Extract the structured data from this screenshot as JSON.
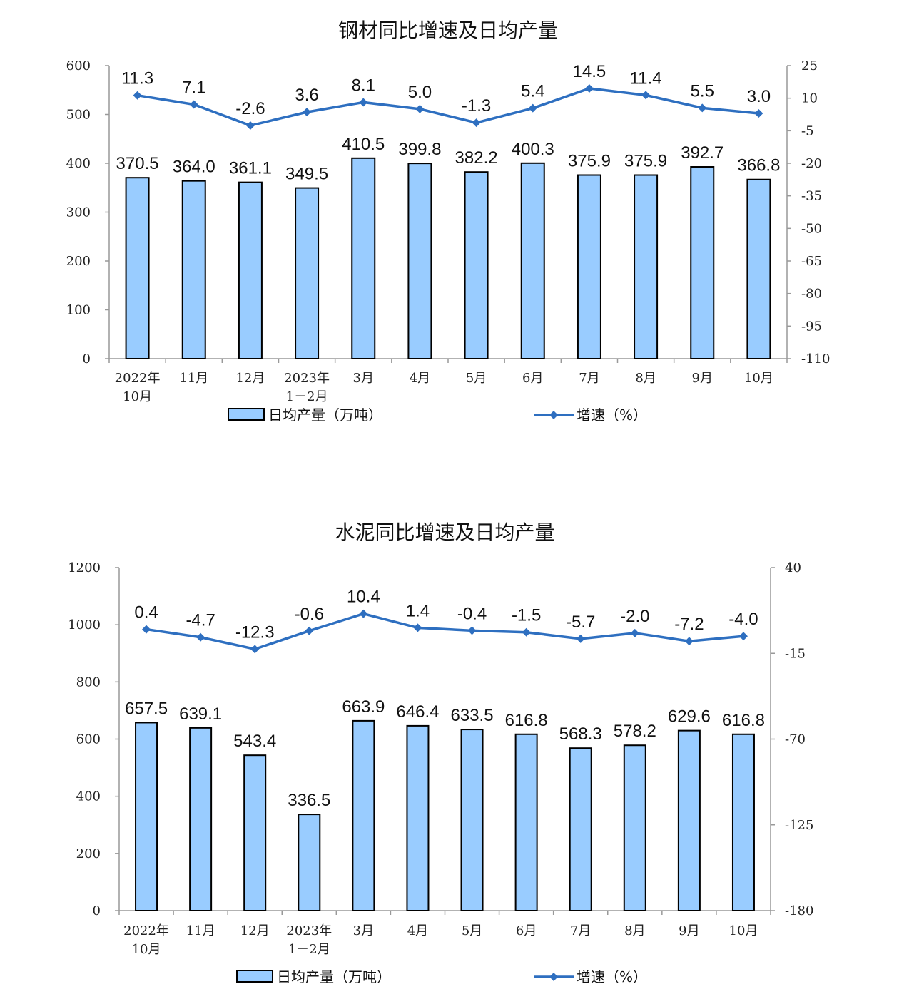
{
  "charts": [
    {
      "id": "steel",
      "chart_data": {
        "type": "bar+line",
        "title": "钢材同比增速及日均产量",
        "categories": [
          [
            "2022年",
            "10月"
          ],
          [
            "11月"
          ],
          [
            "12月"
          ],
          [
            "2023年",
            "1－2月"
          ],
          [
            "3月"
          ],
          [
            "4月"
          ],
          [
            "5月"
          ],
          [
            "6月"
          ],
          [
            "7月"
          ],
          [
            "8月"
          ],
          [
            "9月"
          ],
          [
            "10月"
          ]
        ],
        "series": [
          {
            "name": "日均产量（万吨）",
            "type": "bar",
            "axis": "left",
            "values": [
              370.5,
              364.0,
              361.1,
              349.5,
              410.5,
              399.8,
              382.2,
              400.3,
              375.9,
              375.9,
              392.7,
              366.8
            ]
          },
          {
            "name": "增速（%）",
            "type": "line",
            "axis": "right",
            "values": [
              11.3,
              7.1,
              -2.6,
              3.6,
              8.1,
              5.0,
              -1.3,
              5.4,
              14.5,
              11.4,
              5.5,
              3.0
            ]
          }
        ],
        "left_axis": {
          "ylim": [
            0,
            600
          ],
          "ticks": [
            0,
            100,
            200,
            300,
            400,
            500,
            600
          ]
        },
        "right_axis": {
          "ylim": [
            -110,
            25
          ],
          "ticks": [
            -110,
            -95,
            -80,
            -65,
            -50,
            -35,
            -20,
            -5,
            10,
            25
          ]
        },
        "legend_position": "bottom",
        "colors": {
          "bar_fill": "#99ccff",
          "bar_stroke": "#000000",
          "line": "#2e6fc0"
        }
      }
    },
    {
      "id": "cement",
      "chart_data": {
        "type": "bar+line",
        "title": "水泥同比增速及日均产量",
        "categories": [
          [
            "2022年",
            "10月"
          ],
          [
            "11月"
          ],
          [
            "12月"
          ],
          [
            "2023年",
            "1－2月"
          ],
          [
            "3月"
          ],
          [
            "4月"
          ],
          [
            "5月"
          ],
          [
            "6月"
          ],
          [
            "7月"
          ],
          [
            "8月"
          ],
          [
            "9月"
          ],
          [
            "10月"
          ]
        ],
        "series": [
          {
            "name": "日均产量（万吨）",
            "type": "bar",
            "axis": "left",
            "values": [
              657.5,
              639.1,
              543.4,
              336.5,
              663.9,
              646.4,
              633.5,
              616.8,
              568.3,
              578.2,
              629.6,
              616.8
            ]
          },
          {
            "name": "增速（%）",
            "type": "line",
            "axis": "right",
            "values": [
              0.4,
              -4.7,
              -12.3,
              -0.6,
              10.4,
              1.4,
              -0.4,
              -1.5,
              -5.7,
              -2.0,
              -7.2,
              -4.0
            ]
          }
        ],
        "left_axis": {
          "ylim": [
            0,
            1200
          ],
          "ticks": [
            0,
            200,
            400,
            600,
            800,
            1000,
            1200
          ]
        },
        "right_axis": {
          "ylim": [
            -180,
            40
          ],
          "ticks": [
            -180,
            -125,
            -70,
            -15,
            40
          ]
        },
        "legend_position": "bottom",
        "colors": {
          "bar_fill": "#99ccff",
          "bar_stroke": "#000000",
          "line": "#2e6fc0"
        }
      }
    }
  ]
}
